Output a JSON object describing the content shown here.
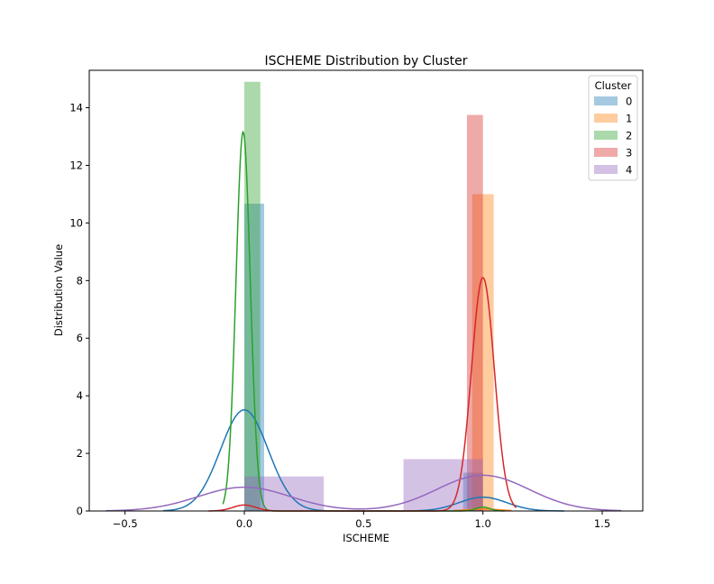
{
  "chart_data": {
    "type": "histogram-kde",
    "title": "ISCHEME Distribution by Cluster",
    "xlabel": "ISCHEME",
    "ylabel": "Distribution Value",
    "xlim": [
      -0.65,
      1.67
    ],
    "ylim": [
      0,
      15.3
    ],
    "xticks": [
      -0.5,
      0.0,
      0.5,
      1.0,
      1.5
    ],
    "xtick_labels": [
      "−0.5",
      "0.0",
      "0.5",
      "1.0",
      "1.5"
    ],
    "yticks": [
      0,
      2,
      4,
      6,
      8,
      10,
      12,
      14
    ],
    "ytick_labels": [
      "0",
      "2",
      "4",
      "6",
      "8",
      "10",
      "12",
      "14"
    ],
    "legend": {
      "title": "Cluster",
      "position": "top-right"
    },
    "series": [
      {
        "name": "0",
        "color": "#1f77b4",
        "bars": [
          {
            "x0": 0.0,
            "x1": 0.083,
            "y": 10.67
          },
          {
            "x0": 0.917,
            "x1": 1.0,
            "y": 1.33
          }
        ],
        "kde": {
          "components": [
            {
              "mu": 0.0,
              "sigma": 0.1,
              "w": 0.88
            },
            {
              "mu": 1.0,
              "sigma": 0.1,
              "w": 0.12
            }
          ],
          "range": [
            -0.34,
            1.34
          ]
        }
      },
      {
        "name": "1",
        "color": "#ff7f0e",
        "bars": [
          {
            "x0": 0.955,
            "x1": 1.045,
            "y": 11.0
          }
        ],
        "kde": {
          "components": [
            {
              "mu": 1.0,
              "sigma": 0.07,
              "w": 0.012
            }
          ],
          "range": [
            0.88,
            1.12
          ]
        }
      },
      {
        "name": "2",
        "color": "#2ca02c",
        "bars": [
          {
            "x0": 0.0,
            "x1": 0.067,
            "y": 14.9
          }
        ],
        "kde": {
          "components": [
            {
              "mu": -0.005,
              "sigma": 0.03,
              "w": 0.99
            },
            {
              "mu": 1.0,
              "sigma": 0.03,
              "w": 0.01
            }
          ],
          "range": [
            -0.09,
            1.09
          ]
        }
      },
      {
        "name": "3",
        "color": "#d62728",
        "bars": [
          {
            "x0": 0.933,
            "x1": 1.0,
            "y": 13.75
          }
        ],
        "kde": {
          "components": [
            {
              "mu": 1.0,
              "sigma": 0.048,
              "w": 0.975
            },
            {
              "mu": 0.0,
              "sigma": 0.048,
              "w": 0.025
            }
          ],
          "range": [
            -0.15,
            1.14
          ]
        }
      },
      {
        "name": "4",
        "color": "#9467bd",
        "bars": [
          {
            "x0": 0.0,
            "x1": 0.333,
            "y": 1.2
          },
          {
            "x0": 0.667,
            "x1": 1.0,
            "y": 1.8
          }
        ],
        "kde": {
          "components": [
            {
              "mu": 0.0,
              "sigma": 0.193,
              "w": 0.4
            },
            {
              "mu": 1.0,
              "sigma": 0.193,
              "w": 0.6
            }
          ],
          "range": [
            -0.58,
            1.58
          ]
        }
      }
    ]
  }
}
